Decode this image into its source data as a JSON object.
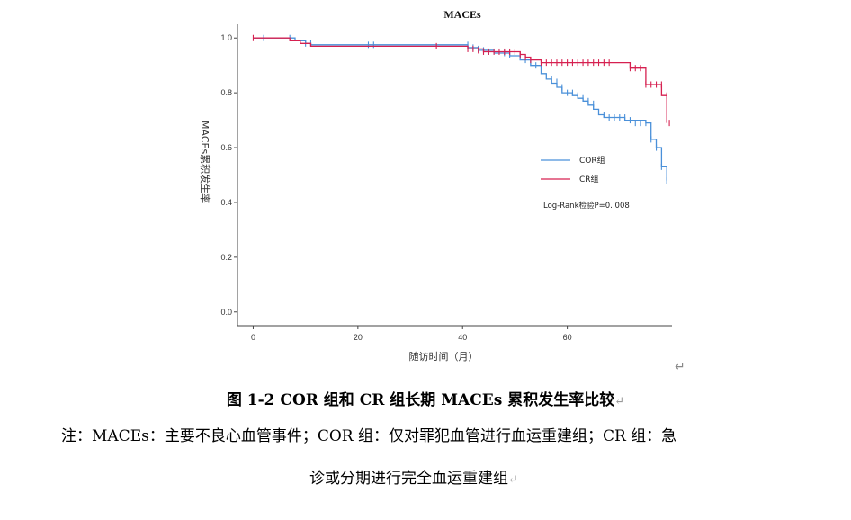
{
  "chart_data": {
    "type": "line",
    "title": "MACEs",
    "xlabel": "随访时间（月）",
    "ylabel": "MACEs累积发生率",
    "xlim": [
      -3,
      80
    ],
    "ylim": [
      -0.05,
      1.05
    ],
    "x_ticks": [
      0,
      20,
      40,
      60
    ],
    "y_ticks": [
      0.0,
      0.2,
      0.4,
      0.6,
      0.8,
      1.0
    ],
    "y_tick_labels": [
      "0.0",
      "0.2",
      "0.4",
      "0.6",
      "0.8",
      "1.0"
    ],
    "grid": false,
    "legend_position": "right-middle",
    "series": [
      {
        "name": "COR组",
        "color": "#4a90d9",
        "points": [
          [
            0,
            1.0
          ],
          [
            6,
            1.0
          ],
          [
            8,
            0.99
          ],
          [
            10,
            0.98
          ],
          [
            11,
            0.975
          ],
          [
            40,
            0.975
          ],
          [
            41,
            0.965
          ],
          [
            43,
            0.955
          ],
          [
            46,
            0.945
          ],
          [
            49,
            0.935
          ],
          [
            51,
            0.92
          ],
          [
            53,
            0.9
          ],
          [
            55,
            0.87
          ],
          [
            56,
            0.85
          ],
          [
            57,
            0.835
          ],
          [
            58,
            0.82
          ],
          [
            59,
            0.8
          ],
          [
            61,
            0.79
          ],
          [
            62,
            0.78
          ],
          [
            63,
            0.77
          ],
          [
            64,
            0.755
          ],
          [
            65,
            0.74
          ],
          [
            66,
            0.72
          ],
          [
            67,
            0.71
          ],
          [
            71,
            0.7
          ],
          [
            75,
            0.69
          ],
          [
            76,
            0.63
          ],
          [
            77,
            0.6
          ],
          [
            78,
            0.53
          ],
          [
            79,
            0.48
          ]
        ],
        "censor_marks": [
          [
            2,
            1.0
          ],
          [
            7,
            1.0
          ],
          [
            10,
            0.98
          ],
          [
            11,
            0.98
          ],
          [
            22,
            0.975
          ],
          [
            23,
            0.975
          ],
          [
            41,
            0.975
          ],
          [
            42,
            0.965
          ],
          [
            43,
            0.96
          ],
          [
            44,
            0.955
          ],
          [
            45,
            0.95
          ],
          [
            48,
            0.945
          ],
          [
            49,
            0.94
          ],
          [
            51,
            0.93
          ],
          [
            52,
            0.92
          ],
          [
            53,
            0.91
          ],
          [
            54,
            0.9
          ],
          [
            55,
            0.9
          ],
          [
            57,
            0.85
          ],
          [
            58,
            0.84
          ],
          [
            59,
            0.82
          ],
          [
            60,
            0.8
          ],
          [
            61,
            0.8
          ],
          [
            62,
            0.79
          ],
          [
            63,
            0.78
          ],
          [
            64,
            0.77
          ],
          [
            65,
            0.76
          ],
          [
            67,
            0.72
          ],
          [
            68,
            0.71
          ],
          [
            69,
            0.71
          ],
          [
            70,
            0.71
          ],
          [
            71,
            0.71
          ],
          [
            72,
            0.7
          ],
          [
            73,
            0.69
          ],
          [
            74,
            0.69
          ],
          [
            75,
            0.69
          ],
          [
            76,
            0.63
          ],
          [
            77,
            0.6
          ],
          [
            78,
            0.53
          ],
          [
            79,
            0.48
          ]
        ]
      },
      {
        "name": "CR组",
        "color": "#d62050",
        "points": [
          [
            0,
            1.0
          ],
          [
            6,
            1.0
          ],
          [
            7,
            0.99
          ],
          [
            9,
            0.98
          ],
          [
            11,
            0.97
          ],
          [
            40,
            0.97
          ],
          [
            41,
            0.96
          ],
          [
            44,
            0.95
          ],
          [
            51,
            0.94
          ],
          [
            52,
            0.93
          ],
          [
            53,
            0.92
          ],
          [
            55,
            0.91
          ],
          [
            71,
            0.91
          ],
          [
            72,
            0.89
          ],
          [
            75,
            0.83
          ],
          [
            78,
            0.79
          ],
          [
            79,
            0.69
          ]
        ],
        "censor_marks": [
          [
            0,
            1.0
          ],
          [
            35,
            0.97
          ],
          [
            41,
            0.96
          ],
          [
            42,
            0.96
          ],
          [
            43,
            0.955
          ],
          [
            44,
            0.95
          ],
          [
            45,
            0.95
          ],
          [
            46,
            0.95
          ],
          [
            47,
            0.95
          ],
          [
            48,
            0.95
          ],
          [
            49,
            0.95
          ],
          [
            50,
            0.95
          ],
          [
            51,
            0.94
          ],
          [
            52,
            0.93
          ],
          [
            53,
            0.92
          ],
          [
            55,
            0.91
          ],
          [
            56,
            0.91
          ],
          [
            57,
            0.91
          ],
          [
            58,
            0.91
          ],
          [
            59,
            0.91
          ],
          [
            60,
            0.91
          ],
          [
            61,
            0.91
          ],
          [
            62,
            0.91
          ],
          [
            63,
            0.91
          ],
          [
            64,
            0.91
          ],
          [
            65,
            0.91
          ],
          [
            66,
            0.91
          ],
          [
            67,
            0.91
          ],
          [
            68,
            0.91
          ],
          [
            72,
            0.89
          ],
          [
            73,
            0.89
          ],
          [
            74,
            0.89
          ],
          [
            75,
            0.83
          ],
          [
            76,
            0.83
          ],
          [
            77,
            0.83
          ],
          [
            78,
            0.83
          ],
          [
            79,
            0.79
          ],
          [
            79.5,
            0.69
          ]
        ]
      }
    ],
    "annotation": "Log-Rank检验P=0. 008"
  },
  "caption": "图 1-2 COR 组和 CR 组长期 MACEs 累积发生率比较",
  "note_line1": "注：MACEs：主要不良心血管事件；COR 组：仅对罪犯血管进行血运重建组；CR 组：急",
  "note_line2": "诊或分期进行完全血运重建组",
  "paragraph_mark": "↵"
}
